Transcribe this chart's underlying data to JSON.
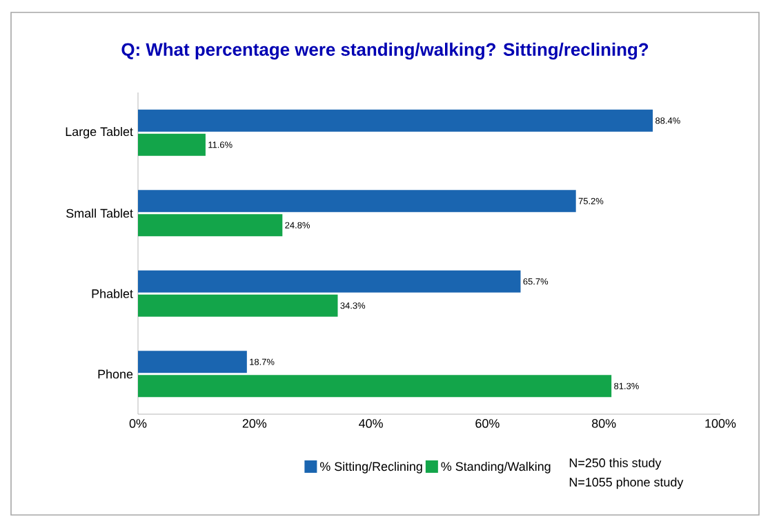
{
  "chart_data": {
    "type": "bar",
    "orientation": "horizontal",
    "title": "Q: What percentage were standing/walking? Sitting/reclining?",
    "categories": [
      "Large Tablet",
      "Small Tablet",
      "Phablet",
      "Phone"
    ],
    "series": [
      {
        "name": "% Sitting/Reclining",
        "color": "#1a65b0",
        "values": [
          88.4,
          75.2,
          65.7,
          18.7
        ],
        "value_labels": [
          "88.4%",
          "75.2%",
          "65.7%",
          "18.7%"
        ]
      },
      {
        "name": "% Standing/Walking",
        "color": "#13a54a",
        "values": [
          11.6,
          24.8,
          34.3,
          81.3
        ],
        "value_labels": [
          "11.6%",
          "24.8%",
          "34.3%",
          "81.3%"
        ]
      }
    ],
    "xlim": [
      0,
      100
    ],
    "xticks": [
      {
        "value": 0,
        "label": "0%"
      },
      {
        "value": 20,
        "label": "20%"
      },
      {
        "value": 40,
        "label": "40%"
      },
      {
        "value": 60,
        "label": "60%"
      },
      {
        "value": 80,
        "label": "80%"
      },
      {
        "value": 100,
        "label": "100%"
      }
    ],
    "legend": "bottom",
    "grid": false,
    "annotations": [
      "N=250 this study",
      "N=1055 phone study"
    ]
  }
}
